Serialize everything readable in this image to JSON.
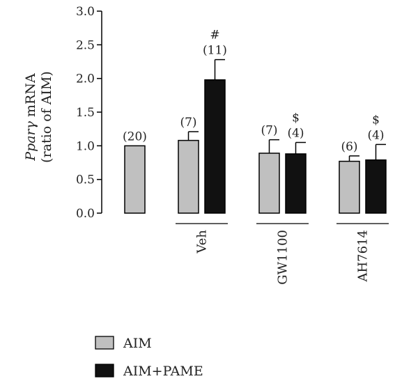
{
  "chart_data": {
    "type": "bar",
    "ylabel_gene": "Pparγ",
    "ylabel_line1_suffix": " mRNA",
    "ylabel_line2": "(ratio of AIM)",
    "ylim": [
      0,
      3.0
    ],
    "yticks": [
      "0.0",
      "0.5",
      "1.0",
      "1.5",
      "2.0",
      "2.5",
      "3.0"
    ],
    "groups": [
      {
        "label": "",
        "bars": [
          {
            "series": "AIM",
            "value": 1.0,
            "error": 0,
            "n_label": "(20)",
            "sig": ""
          }
        ]
      },
      {
        "label": "Veh",
        "bars": [
          {
            "series": "AIM",
            "value": 1.08,
            "error": 0.13,
            "n_label": "(7)",
            "sig": ""
          },
          {
            "series": "AIM+PAME",
            "value": 1.98,
            "error": 0.3,
            "n_label": "(11)",
            "sig": "#"
          }
        ]
      },
      {
        "label": "GW1100",
        "bars": [
          {
            "series": "AIM",
            "value": 0.89,
            "error": 0.2,
            "n_label": "(7)",
            "sig": ""
          },
          {
            "series": "AIM+PAME",
            "value": 0.88,
            "error": 0.17,
            "n_label": "(4)",
            "sig": "$"
          }
        ]
      },
      {
        "label": "AH7614",
        "bars": [
          {
            "series": "AIM",
            "value": 0.77,
            "error": 0.08,
            "n_label": "(6)",
            "sig": ""
          },
          {
            "series": "AIM+PAME",
            "value": 0.79,
            "error": 0.23,
            "n_label": "(4)",
            "sig": "$"
          }
        ]
      }
    ],
    "legend": [
      {
        "name": "AIM",
        "color": "#c0c0c0"
      },
      {
        "name": "AIM+PAME",
        "color": "#111111"
      }
    ],
    "legend_position": "bottom-left",
    "grid": false
  }
}
